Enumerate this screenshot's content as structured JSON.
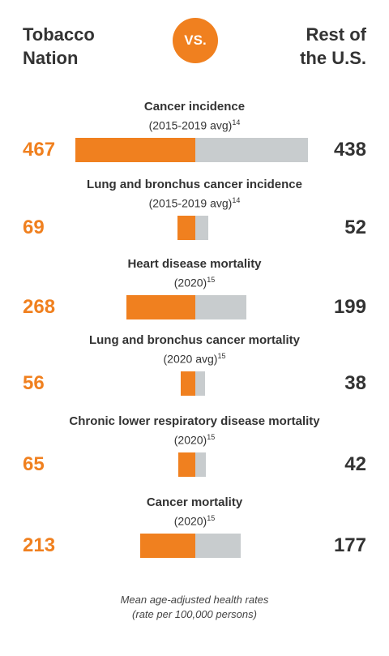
{
  "header": {
    "left_line1": "Tobacco",
    "left_line2": "Nation",
    "vs": "VS.",
    "right_line1": "Rest of",
    "right_line2": "the U.S."
  },
  "colors": {
    "tobacco_nation": "#f0801f",
    "rest_of_us": "#c8ccce"
  },
  "chart_data": {
    "type": "bar",
    "orientation": "horizontal-diverging",
    "categories": [
      "Cancer incidence",
      "Lung and bronchus cancer incidence",
      "Heart disease mortality",
      "Lung and bronchus cancer mortality",
      "Chronic lower respiratory disease mortality",
      "Cancer mortality"
    ],
    "subtitles": [
      {
        "text": "(2015-2019 avg)",
        "sup": "14"
      },
      {
        "text": "(2015-2019 avg)",
        "sup": "14"
      },
      {
        "text": "(2020)",
        "sup": "15"
      },
      {
        "text": "(2020 avg)",
        "sup": "15"
      },
      {
        "text": "(2020)",
        "sup": "15"
      },
      {
        "text": "(2020)",
        "sup": "15"
      }
    ],
    "series": [
      {
        "name": "Tobacco Nation",
        "values": [
          467,
          69,
          268,
          56,
          65,
          213
        ]
      },
      {
        "name": "Rest of the U.S.",
        "values": [
          438,
          52,
          199,
          38,
          42,
          177
        ]
      }
    ],
    "note_line1": "Mean age-adjusted health rates",
    "note_line2": "(rate per 100,000 persons)"
  }
}
